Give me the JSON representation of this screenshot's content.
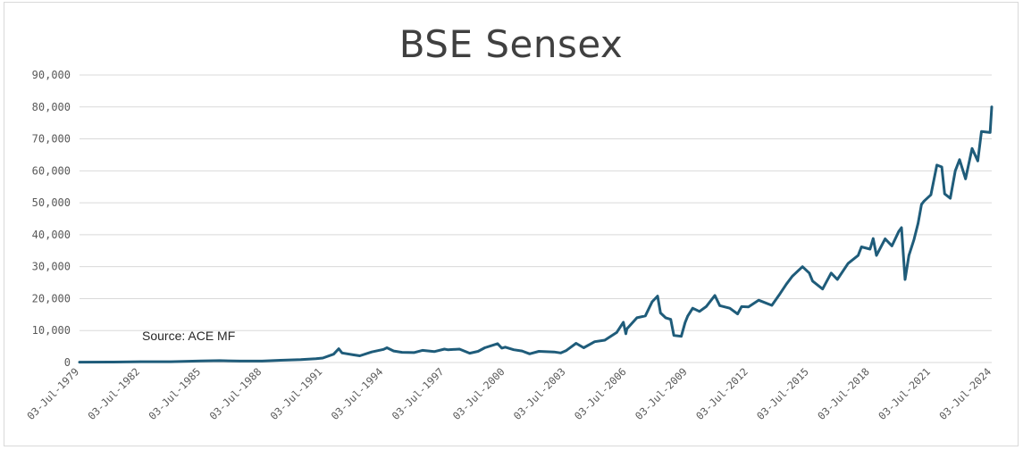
{
  "chart_data": {
    "type": "line",
    "title": "BSE Sensex",
    "xlabel": "",
    "ylabel": "",
    "annotation": "Source: ACE MF",
    "ylim": [
      0,
      90000
    ],
    "xlim": [
      "1979-07-03",
      "2024-07-03"
    ],
    "grid": true,
    "legend": "none",
    "line_color": "#1f5c7a",
    "y_ticks": [
      0,
      10000,
      20000,
      30000,
      40000,
      50000,
      60000,
      70000,
      80000,
      90000
    ],
    "y_tick_labels": [
      "0",
      "10,000",
      "20,000",
      "30,000",
      "40,000",
      "50,000",
      "60,000",
      "70,000",
      "80,000",
      "90,000"
    ],
    "x_ticks": [
      "1979-07-03",
      "1982-07-03",
      "1985-07-03",
      "1988-07-03",
      "1991-07-03",
      "1994-07-03",
      "1997-07-03",
      "2000-07-03",
      "2003-07-03",
      "2006-07-03",
      "2009-07-03",
      "2012-07-03",
      "2015-07-03",
      "2018-07-03",
      "2021-07-03",
      "2024-07-03"
    ],
    "x_tick_labels": [
      "03-Jul-1979",
      "03-Jul-1982",
      "03-Jul-1985",
      "03-Jul-1988",
      "03-Jul-1991",
      "03-Jul-1994",
      "03-Jul-1997",
      "03-Jul-2000",
      "03-Jul-2003",
      "03-Jul-2006",
      "03-Jul-2009",
      "03-Jul-2012",
      "03-Jul-2015",
      "03-Jul-2018",
      "03-Jul-2021",
      "03-Jul-2024"
    ],
    "series": [
      {
        "points": [
          [
            "1979-07-03",
            100
          ],
          [
            "1981-01-01",
            150
          ],
          [
            "1982-07-03",
            250
          ],
          [
            "1984-01-01",
            250
          ],
          [
            "1985-07-03",
            500
          ],
          [
            "1986-06-01",
            600
          ],
          [
            "1987-06-01",
            450
          ],
          [
            "1988-07-03",
            450
          ],
          [
            "1989-06-01",
            700
          ],
          [
            "1990-06-01",
            900
          ],
          [
            "1991-03-01",
            1200
          ],
          [
            "1991-07-03",
            1400
          ],
          [
            "1992-01-15",
            2600
          ],
          [
            "1992-04-15",
            4300
          ],
          [
            "1992-06-15",
            3000
          ],
          [
            "1993-01-01",
            2400
          ],
          [
            "1993-05-01",
            2100
          ],
          [
            "1993-12-01",
            3300
          ],
          [
            "1994-07-03",
            4100
          ],
          [
            "1994-09-01",
            4600
          ],
          [
            "1995-01-01",
            3600
          ],
          [
            "1995-06-01",
            3200
          ],
          [
            "1996-01-01",
            3100
          ],
          [
            "1996-06-01",
            3800
          ],
          [
            "1997-01-01",
            3400
          ],
          [
            "1997-07-03",
            4200
          ],
          [
            "1997-09-01",
            4000
          ],
          [
            "1998-04-01",
            4200
          ],
          [
            "1998-10-01",
            2900
          ],
          [
            "1999-03-01",
            3500
          ],
          [
            "1999-07-01",
            4600
          ],
          [
            "2000-02-15",
            5900
          ],
          [
            "2000-05-01",
            4500
          ],
          [
            "2000-07-03",
            4800
          ],
          [
            "2000-12-01",
            4000
          ],
          [
            "2001-05-01",
            3600
          ],
          [
            "2001-09-15",
            2700
          ],
          [
            "2002-03-01",
            3500
          ],
          [
            "2002-12-01",
            3300
          ],
          [
            "2003-04-01",
            3000
          ],
          [
            "2003-07-03",
            3700
          ],
          [
            "2004-01-01",
            6000
          ],
          [
            "2004-05-17",
            4600
          ],
          [
            "2004-12-01",
            6500
          ],
          [
            "2005-06-01",
            7000
          ],
          [
            "2006-01-01",
            9400
          ],
          [
            "2006-05-01",
            12600
          ],
          [
            "2006-06-15",
            9000
          ],
          [
            "2006-07-03",
            10500
          ],
          [
            "2007-01-01",
            14000
          ],
          [
            "2007-06-01",
            14600
          ],
          [
            "2007-10-01",
            19000
          ],
          [
            "2008-01-08",
            20800
          ],
          [
            "2008-03-01",
            15500
          ],
          [
            "2008-06-01",
            14000
          ],
          [
            "2008-09-01",
            13500
          ],
          [
            "2008-10-27",
            8500
          ],
          [
            "2009-03-09",
            8200
          ],
          [
            "2009-05-18",
            12500
          ],
          [
            "2009-07-03",
            14500
          ],
          [
            "2009-10-01",
            17000
          ],
          [
            "2010-02-01",
            16000
          ],
          [
            "2010-06-01",
            17500
          ],
          [
            "2010-11-05",
            21000
          ],
          [
            "2011-02-01",
            17800
          ],
          [
            "2011-08-01",
            17000
          ],
          [
            "2011-12-20",
            15200
          ],
          [
            "2012-03-01",
            17500
          ],
          [
            "2012-07-03",
            17400
          ],
          [
            "2013-01-01",
            19500
          ],
          [
            "2013-08-28",
            17900
          ],
          [
            "2014-01-01",
            21000
          ],
          [
            "2014-05-16",
            24500
          ],
          [
            "2014-09-01",
            27000
          ],
          [
            "2015-03-04",
            30000
          ],
          [
            "2015-07-03",
            28000
          ],
          [
            "2015-09-01",
            25500
          ],
          [
            "2016-02-29",
            23000
          ],
          [
            "2016-08-01",
            28000
          ],
          [
            "2016-11-20",
            26000
          ],
          [
            "2017-06-01",
            31000
          ],
          [
            "2017-12-01",
            33500
          ],
          [
            "2018-01-29",
            36200
          ],
          [
            "2018-07-03",
            35500
          ],
          [
            "2018-08-28",
            38800
          ],
          [
            "2018-10-26",
            33500
          ],
          [
            "2019-04-01",
            38700
          ],
          [
            "2019-08-01",
            36500
          ],
          [
            "2019-12-01",
            41000
          ],
          [
            "2020-01-20",
            42200
          ],
          [
            "2020-03-24",
            26000
          ],
          [
            "2020-06-01",
            33500
          ],
          [
            "2020-09-01",
            38500
          ],
          [
            "2020-11-15",
            43600
          ],
          [
            "2021-01-15",
            49500
          ],
          [
            "2021-03-01",
            50500
          ],
          [
            "2021-07-03",
            52500
          ],
          [
            "2021-10-18",
            61800
          ],
          [
            "2022-01-15",
            61200
          ],
          [
            "2022-03-07",
            52800
          ],
          [
            "2022-06-17",
            51400
          ],
          [
            "2022-09-15",
            60000
          ],
          [
            "2022-12-01",
            63500
          ],
          [
            "2023-03-20",
            57500
          ],
          [
            "2023-07-15",
            67000
          ],
          [
            "2023-10-26",
            63100
          ],
          [
            "2023-12-31",
            72300
          ],
          [
            "2024-06-04",
            72000
          ],
          [
            "2024-07-03",
            80000
          ]
        ]
      }
    ]
  }
}
